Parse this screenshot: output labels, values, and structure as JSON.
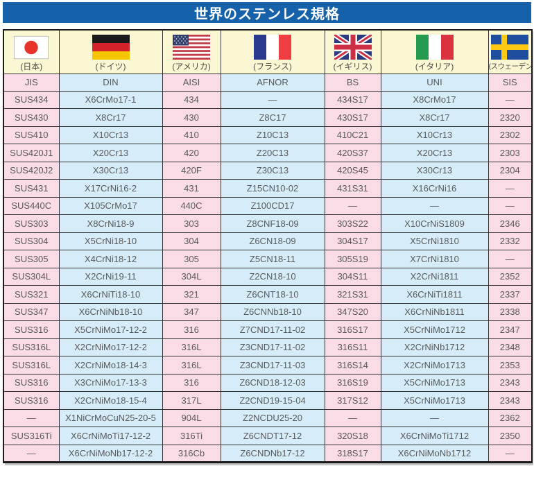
{
  "title": "世界のステンレス規格",
  "colors": {
    "title_bg": "#1562aa",
    "cream": "#faf7d2",
    "pink": "#fadce6",
    "blue": "#d6edf9",
    "text": "#58595b"
  },
  "table": {
    "countries": [
      {
        "flag": "japan-flag-icon",
        "label": "(日本)",
        "code": "JIS"
      },
      {
        "flag": "germany-flag-icon",
        "label": "(ドイツ)",
        "code": "DIN"
      },
      {
        "flag": "usa-flag-icon",
        "label": "(アメリカ)",
        "code": "AISI"
      },
      {
        "flag": "france-flag-icon",
        "label": "(フランス)",
        "code": "AFNOR"
      },
      {
        "flag": "uk-flag-icon",
        "label": "(イギリス)",
        "code": "BS"
      },
      {
        "flag": "italy-flag-icon",
        "label": "(イタリア)",
        "code": "UNI"
      },
      {
        "flag": "sweden-flag-icon",
        "label": "(スウェーデン)",
        "code": "SIS"
      }
    ],
    "rows": [
      [
        "SUS434",
        "X6CrMo17-1",
        "434",
        "—",
        "434S17",
        "X8CrMo17",
        "—"
      ],
      [
        "SUS430",
        "X8Cr17",
        "430",
        "Z8C17",
        "430S17",
        "X8Cr17",
        "2320"
      ],
      [
        "SUS410",
        "X10Cr13",
        "410",
        "Z10C13",
        "410C21",
        "X10Cr13",
        "2302"
      ],
      [
        "SUS420J1",
        "X20Cr13",
        "420",
        "Z20C13",
        "420S37",
        "X20Cr13",
        "2303"
      ],
      [
        "SUS420J2",
        "X30Cr13",
        "420F",
        "Z30C13",
        "420S45",
        "X30Cr13",
        "2304"
      ],
      [
        "SUS431",
        "X17CrNi16-2",
        "431",
        "Z15CN10-02",
        "431S31",
        "X16CrNi16",
        "—"
      ],
      [
        "SUS440C",
        "X105CrMo17",
        "440C",
        "Z100CD17",
        "—",
        "—",
        "—"
      ],
      [
        "SUS303",
        "X8CrNi18-9",
        "303",
        "Z8CNF18-09",
        "303S22",
        "X10CrNiS1809",
        "2346"
      ],
      [
        "SUS304",
        "X5CrNi18-10",
        "304",
        "Z6CN18-09",
        "304S17",
        "X5CrNi1810",
        "2332"
      ],
      [
        "SUS305",
        "X4CrNi18-12",
        "305",
        "Z5CN18-11",
        "305S19",
        "X7CrNi1810",
        "—"
      ],
      [
        "SUS304L",
        "X2CrNi19-11",
        "304L",
        "Z2CN18-10",
        "304S11",
        "X2CrNi1811",
        "2352"
      ],
      [
        "SUS321",
        "X6CrNiTi18-10",
        "321",
        "Z6CNT18-10",
        "321S31",
        "X6CrNiTi1811",
        "2337"
      ],
      [
        "SUS347",
        "X6CrNiNb18-10",
        "347",
        "Z6CNNb18-10",
        "347S20",
        "X6CrNiNb1811",
        "2338"
      ],
      [
        "SUS316",
        "X5CrNiMo17-12-2",
        "316",
        "Z7CND17-11-02",
        "316S17",
        "X5CrNiMo1712",
        "2347"
      ],
      [
        "SUS316L",
        "X2CrNiMo17-12-2",
        "316L",
        "Z3CND17-11-02",
        "316S11",
        "X2CrNiNb1712",
        "2348"
      ],
      [
        "SUS316L",
        "X2CrNiMo18-14-3",
        "316L",
        "Z3CND17-11-03",
        "316S14",
        "X2CrNiMo1713",
        "2353"
      ],
      [
        "SUS316",
        "X3CrNiMo17-13-3",
        "316",
        "Z6CND18-12-03",
        "316S19",
        "X5CrNiMo1713",
        "2343"
      ],
      [
        "SUS316",
        "X2CrNiMo18-15-4",
        "317L",
        "Z2CND19-15-04",
        "317S12",
        "X5CrNiMo1713",
        "2343"
      ],
      [
        "—",
        "X1NiCrMoCuN25-20-5",
        "904L",
        "Z2NCDU25-20",
        "—",
        "—",
        "2362"
      ],
      [
        "SUS316Ti",
        "X6CrNiMoTi17-12-2",
        "316Ti",
        "Z6CNDT17-12",
        "320S18",
        "X6CrNiMoTi1712",
        "2350"
      ],
      [
        "—",
        "X6CrNiMoNb17-12-2",
        "316Cb",
        "Z6CNDNb17-12",
        "318S17",
        "X6CrNiMoNb1712",
        "—"
      ]
    ]
  }
}
